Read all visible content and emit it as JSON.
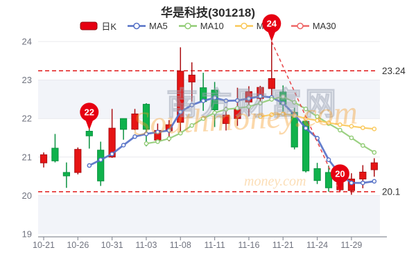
{
  "chart_data": {
    "type": "candlestick",
    "title": "华是科技(301218)",
    "legend_items": [
      {
        "label": "日K",
        "type": "rect",
        "color": "#e60012",
        "border": "#90060c"
      },
      {
        "label": "MA5",
        "type": "line",
        "color": "#5470c6"
      },
      {
        "label": "MA10",
        "type": "line",
        "color": "#91cc75"
      },
      {
        "label": "MA20",
        "type": "line",
        "color": "#fac858"
      },
      {
        "label": "MA30",
        "type": "line",
        "color": "#ee6666"
      }
    ],
    "y_axis": {
      "min": 19,
      "max": 24,
      "ticks": [
        24,
        23,
        22,
        21,
        20,
        19
      ]
    },
    "x_labels": [
      {
        "index": 0,
        "label": "10-21"
      },
      {
        "index": 3,
        "label": "10-26"
      },
      {
        "index": 6,
        "label": "10-31"
      },
      {
        "index": 9,
        "label": "11-03"
      },
      {
        "index": 12,
        "label": "11-08"
      },
      {
        "index": 15,
        "label": "11-11"
      },
      {
        "index": 18,
        "label": "11-16"
      },
      {
        "index": 21,
        "label": "11-21"
      },
      {
        "index": 24,
        "label": "11-24"
      },
      {
        "index": 27,
        "label": "11-29"
      }
    ],
    "candles": [
      {
        "date": "10-21",
        "open": 20.85,
        "close": 21.06,
        "high": 21.12,
        "low": 20.73,
        "dir": "up"
      },
      {
        "date": "10-24",
        "open": 21.23,
        "close": 20.9,
        "high": 21.6,
        "low": 20.86,
        "dir": "down"
      },
      {
        "date": "10-25",
        "open": 20.6,
        "close": 20.51,
        "high": 20.86,
        "low": 20.2,
        "dir": "down"
      },
      {
        "date": "10-26",
        "open": 20.6,
        "close": 21.2,
        "high": 21.25,
        "low": 20.55,
        "dir": "up"
      },
      {
        "date": "10-27",
        "open": 21.67,
        "close": 21.55,
        "high": 22.0,
        "low": 21.22,
        "dir": "down"
      },
      {
        "date": "10-28",
        "open": 21.18,
        "close": 20.38,
        "high": 21.4,
        "low": 20.25,
        "dir": "down"
      },
      {
        "date": "10-31",
        "open": 21.0,
        "close": 21.75,
        "high": 22.25,
        "low": 20.98,
        "dir": "up"
      },
      {
        "date": "11-01",
        "open": 22.0,
        "close": 21.72,
        "high": 22.0,
        "low": 21.45,
        "dir": "down"
      },
      {
        "date": "11-02",
        "open": 21.72,
        "close": 22.12,
        "high": 22.25,
        "low": 21.7,
        "dir": "up"
      },
      {
        "date": "11-03",
        "open": 22.37,
        "close": 21.72,
        "high": 22.4,
        "low": 21.28,
        "dir": "down"
      },
      {
        "date": "11-04",
        "open": 21.44,
        "close": 21.69,
        "high": 21.87,
        "low": 21.35,
        "dir": "up"
      },
      {
        "date": "11-07",
        "open": 21.68,
        "close": 21.84,
        "high": 21.96,
        "low": 21.41,
        "dir": "up"
      },
      {
        "date": "11-08",
        "open": 21.9,
        "close": 23.23,
        "high": 23.85,
        "low": 21.6,
        "dir": "up"
      },
      {
        "date": "11-09",
        "open": 22.95,
        "close": 23.13,
        "high": 23.46,
        "low": 22.44,
        "dir": "up"
      },
      {
        "date": "11-10",
        "open": 22.8,
        "close": 22.44,
        "high": 23.19,
        "low": 22.2,
        "dir": "down"
      },
      {
        "date": "11-11",
        "open": 22.74,
        "close": 22.23,
        "high": 22.95,
        "low": 21.78,
        "dir": "down"
      },
      {
        "date": "11-14",
        "open": 21.87,
        "close": 22.09,
        "high": 22.31,
        "low": 21.69,
        "dir": "up"
      },
      {
        "date": "11-15",
        "open": 22.0,
        "close": 22.24,
        "high": 22.8,
        "low": 21.81,
        "dir": "up"
      },
      {
        "date": "11-16",
        "open": 22.43,
        "close": 22.7,
        "high": 22.84,
        "low": 22.06,
        "dir": "up"
      },
      {
        "date": "11-17",
        "open": 22.52,
        "close": 22.81,
        "high": 22.85,
        "low": 22.4,
        "dir": "up"
      },
      {
        "date": "11-18",
        "open": 22.78,
        "close": 23.04,
        "high": 24.0,
        "low": 22.6,
        "dir": "up"
      },
      {
        "date": "11-21",
        "open": 22.69,
        "close": 22.37,
        "high": 22.86,
        "low": 22.18,
        "dir": "down"
      },
      {
        "date": "11-22",
        "open": 22.16,
        "close": 21.26,
        "high": 22.28,
        "low": 21.2,
        "dir": "down"
      },
      {
        "date": "11-23",
        "open": 21.93,
        "close": 20.64,
        "high": 21.98,
        "low": 20.6,
        "dir": "down"
      },
      {
        "date": "11-24",
        "open": 20.7,
        "close": 20.39,
        "high": 20.85,
        "low": 20.3,
        "dir": "down"
      },
      {
        "date": "11-25",
        "open": 20.6,
        "close": 20.2,
        "high": 20.78,
        "low": 20.1,
        "dir": "down"
      },
      {
        "date": "11-28",
        "open": 20.15,
        "close": 20.45,
        "high": 20.5,
        "low": 20.1,
        "dir": "up"
      },
      {
        "date": "11-29",
        "open": 20.13,
        "close": 20.43,
        "high": 20.58,
        "low": 20.02,
        "dir": "up"
      },
      {
        "date": "11-30",
        "open": 20.43,
        "close": 20.61,
        "high": 20.79,
        "low": 20.19,
        "dir": "up"
      },
      {
        "date": "12-01",
        "open": 20.67,
        "close": 20.85,
        "high": 20.97,
        "low": 20.49,
        "dir": "up"
      }
    ],
    "series": [
      {
        "name": "MA5",
        "start_index": 4,
        "color": "#5470c6",
        "width": 2.8,
        "values": [
          20.78,
          20.93,
          21.08,
          21.31,
          21.53,
          21.6,
          21.65,
          21.69,
          22.17,
          22.35,
          22.46,
          22.54,
          22.46,
          22.47,
          22.52,
          22.58,
          22.55,
          22.4,
          22.1,
          21.75,
          21.49,
          20.93,
          20.55,
          20.33,
          20.33,
          20.37
        ]
      },
      {
        "name": "MA10",
        "start_index": 9,
        "color": "#91cc75",
        "width": 2.2,
        "values": [
          21.35,
          21.4,
          21.48,
          21.62,
          21.82,
          22.0,
          22.15,
          22.24,
          22.27,
          22.31,
          22.4,
          22.5,
          22.57,
          22.42,
          22.25,
          22.05,
          21.87,
          21.7,
          21.5,
          21.3,
          21.12
        ]
      },
      {
        "name": "MA20",
        "start_index": 19,
        "color": "#fac858",
        "width": 2.2,
        "values": [
          22.05,
          22.1,
          22.12,
          22.08,
          22.0,
          21.95,
          21.89,
          21.84,
          21.8,
          21.76,
          21.73
        ]
      }
    ],
    "ref_lines": [
      {
        "value": 23.24,
        "label": "23.24"
      },
      {
        "value": 20.1,
        "label": "20.1"
      }
    ],
    "trend_line": {
      "from_index": 20,
      "from_value": 24.0,
      "to_index": 26,
      "to_value": 20.1
    },
    "markers": [
      {
        "label": "22",
        "candle_index": 4,
        "tip_value": 21.7
      },
      {
        "label": "24",
        "candle_index": 20,
        "tip_value": 24.0
      },
      {
        "label": "20",
        "candle_index": 26,
        "tip_value": 20.1
      }
    ],
    "colors": {
      "up_fill": "#e61414",
      "up_stroke": "#ab0d12",
      "down_fill": "#10b24c",
      "down_stroke": "#0a9140",
      "marker": "#e60012",
      "ref_line": "#e01717",
      "grid": "#e8e8ee",
      "band": "#f2f4f9",
      "axis_label": "#70737f",
      "axis_line": "#8b8f99",
      "ref_label": "#333333",
      "watermark_orange": "#f59b22",
      "watermark_gray": "#9aa2b2"
    },
    "layout": {
      "gray_bands": [
        [
          19,
          20
        ],
        [
          22,
          23
        ]
      ]
    },
    "watermark": {
      "script": "Southmoney.com",
      "script_small": "money.com",
      "cjk": "南方财富网"
    }
  }
}
